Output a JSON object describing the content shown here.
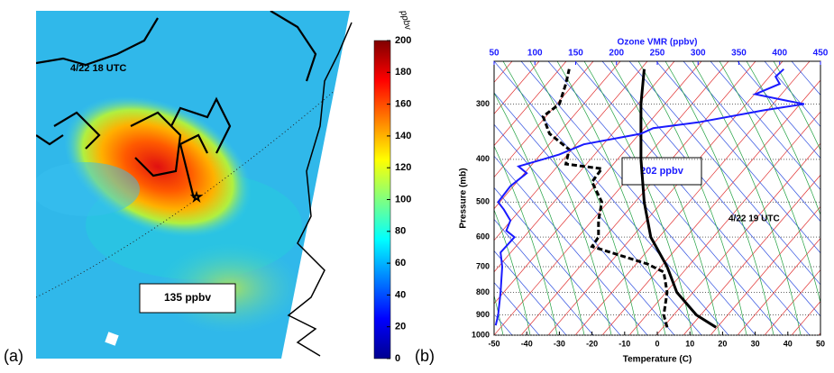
{
  "chart_data": [
    {
      "type": "map",
      "label": "(a)",
      "annotations": [
        "4/22 18 UTC",
        "135 ppbv"
      ],
      "colorbar_label": "ppbv",
      "clim": [
        0,
        200
      ],
      "cticks": [
        0,
        20,
        40,
        60,
        80,
        100,
        120,
        140,
        160,
        180,
        200
      ]
    },
    {
      "type": "line",
      "label": "(b)",
      "xlabel": "Temperature (C)",
      "x2label": "Ozone VMR (ppbv)",
      "ylabel": "Pressure (mb)",
      "xlim": [
        -50,
        50
      ],
      "xticks": [
        -50,
        -40,
        -30,
        -20,
        -10,
        0,
        10,
        20,
        30,
        40,
        50
      ],
      "x2lim": [
        50,
        450
      ],
      "x2ticks": [
        50,
        100,
        150,
        200,
        250,
        300,
        350,
        400,
        450
      ],
      "ylim": [
        1000,
        240
      ],
      "yticks": [
        1000,
        900,
        800,
        700,
        600,
        500,
        400,
        300
      ],
      "log_y": true,
      "grid": true,
      "annotations": [
        "202 ppbv",
        "4/22 19 UTC"
      ],
      "series": [
        {
          "color": "#000000",
          "style": "solid",
          "x": [
            18,
            12,
            6,
            3,
            -2,
            -4,
            -5,
            -5,
            -4
          ],
          "y": [
            960,
            900,
            800,
            700,
            600,
            500,
            400,
            300,
            250
          ]
        },
        {
          "color": "#000000",
          "style": "dashed",
          "x": [
            3,
            2,
            3,
            2,
            -3,
            -20,
            -18,
            -18,
            -17,
            -20,
            -17,
            -28,
            -27,
            -33,
            -35,
            -30,
            -28,
            -27
          ],
          "y": [
            960,
            900,
            800,
            720,
            690,
            630,
            600,
            550,
            500,
            450,
            420,
            410,
            380,
            350,
            320,
            300,
            270,
            250
          ]
        },
        {
          "color": "#1a1aff",
          "style": "solid",
          "axis": "x2",
          "x": [
            52,
            55,
            58,
            60,
            58,
            75,
            65,
            70,
            62,
            55,
            70,
            90,
            80,
            110,
            130,
            160,
            230,
            245,
            300,
            380,
            430,
            410,
            370,
            400,
            395,
            405
          ],
          "y": [
            950,
            900,
            800,
            700,
            650,
            600,
            580,
            550,
            520,
            500,
            460,
            430,
            415,
            400,
            390,
            370,
            350,
            340,
            330,
            310,
            300,
            295,
            285,
            270,
            260,
            250
          ]
        }
      ]
    }
  ]
}
